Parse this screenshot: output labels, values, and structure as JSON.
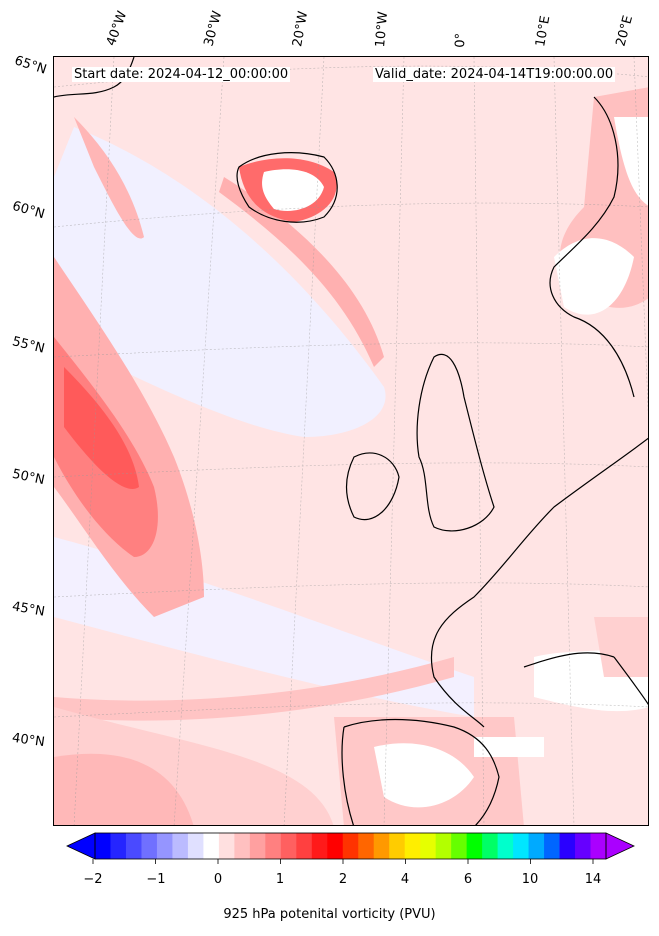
{
  "header": {
    "start_date": "Start date: 2024-04-12_00:00:00",
    "valid_date": "Valid_date: 2024-04-14T19:00:00.00"
  },
  "lon_labels": [
    "40°W",
    "30°W",
    "20°W",
    "10°W",
    "0°",
    "10°E",
    "20°E"
  ],
  "lat_labels": [
    "65°N",
    "60°N",
    "55°N",
    "50°N",
    "45°N",
    "40°N"
  ],
  "colorbar": {
    "title": "925 hPa potenital vorticity (PVU)",
    "ticks": [
      "−2",
      "−1",
      "0",
      "1",
      "2",
      "4",
      "6",
      "10",
      "14"
    ],
    "colors": [
      "#0000ff",
      "#2525ff",
      "#4a4aff",
      "#7070ff",
      "#9595ff",
      "#bbbbff",
      "#e0e0ff",
      "#ffffff",
      "#ffe0e0",
      "#ffc0c0",
      "#ffa0a0",
      "#ff8080",
      "#ff6060",
      "#ff4040",
      "#ff1a1a",
      "#ff0000",
      "#ff3300",
      "#ff6600",
      "#ff9900",
      "#ffcc00",
      "#ffee00",
      "#e6ff00",
      "#b3ff00",
      "#66ff00",
      "#00ff00",
      "#00ff66",
      "#00ffcc",
      "#00e6ff",
      "#00aaff",
      "#0066ff",
      "#2a00ff",
      "#6600ff",
      "#aa00ff"
    ]
  }
}
